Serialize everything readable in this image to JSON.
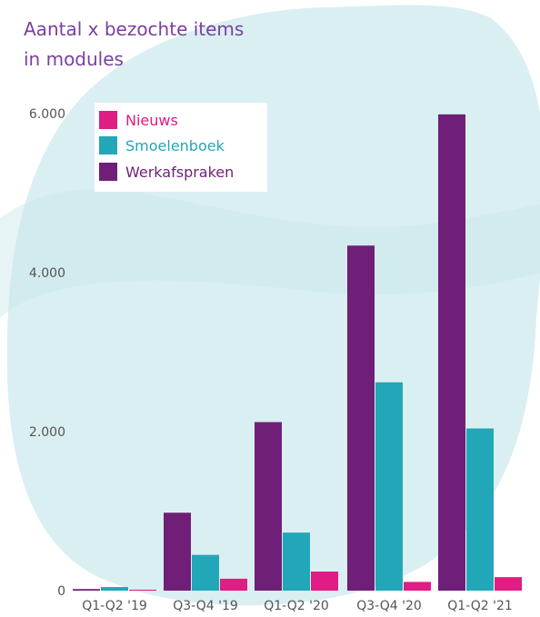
{
  "chart_data": {
    "type": "bar",
    "title_lines": [
      "Aantal x bezochte items",
      "in modules"
    ],
    "categories": [
      "Q1-Q2 '19",
      "Q3-Q4 '19",
      "Q1-Q2 '20",
      "Q3-Q4 '20",
      "Q1-Q2 '21"
    ],
    "series": [
      {
        "name": "Werkafspraken",
        "color": "#6f1f78",
        "values": [
          20,
          980,
          2120,
          4340,
          5990
        ]
      },
      {
        "name": "Smoelenboek",
        "color": "#22a7b8",
        "values": [
          45,
          450,
          730,
          2620,
          2040
        ]
      },
      {
        "name": "Nieuws",
        "color": "#e01d84",
        "values": [
          12,
          150,
          240,
          110,
          170
        ]
      }
    ],
    "legend": [
      {
        "name": "Nieuws",
        "color": "#e01d84",
        "text_color": "#e01d84"
      },
      {
        "name": "Smoelenboek",
        "color": "#22a7b8",
        "text_color": "#22a7b8"
      },
      {
        "name": "Werkafspraken",
        "color": "#6f1f78",
        "text_color": "#6f1f78"
      }
    ],
    "y_ticks": [
      {
        "value": 0,
        "label": "0"
      },
      {
        "value": 2000,
        "label": "2.000"
      },
      {
        "value": 4000,
        "label": "4.000"
      },
      {
        "value": 6000,
        "label": "6.000"
      }
    ],
    "ylim": [
      0,
      6000
    ],
    "legend_position": "top-left",
    "grid": false,
    "title_color": "#7b3fa0",
    "background_blob_color": "#d8eef0"
  }
}
